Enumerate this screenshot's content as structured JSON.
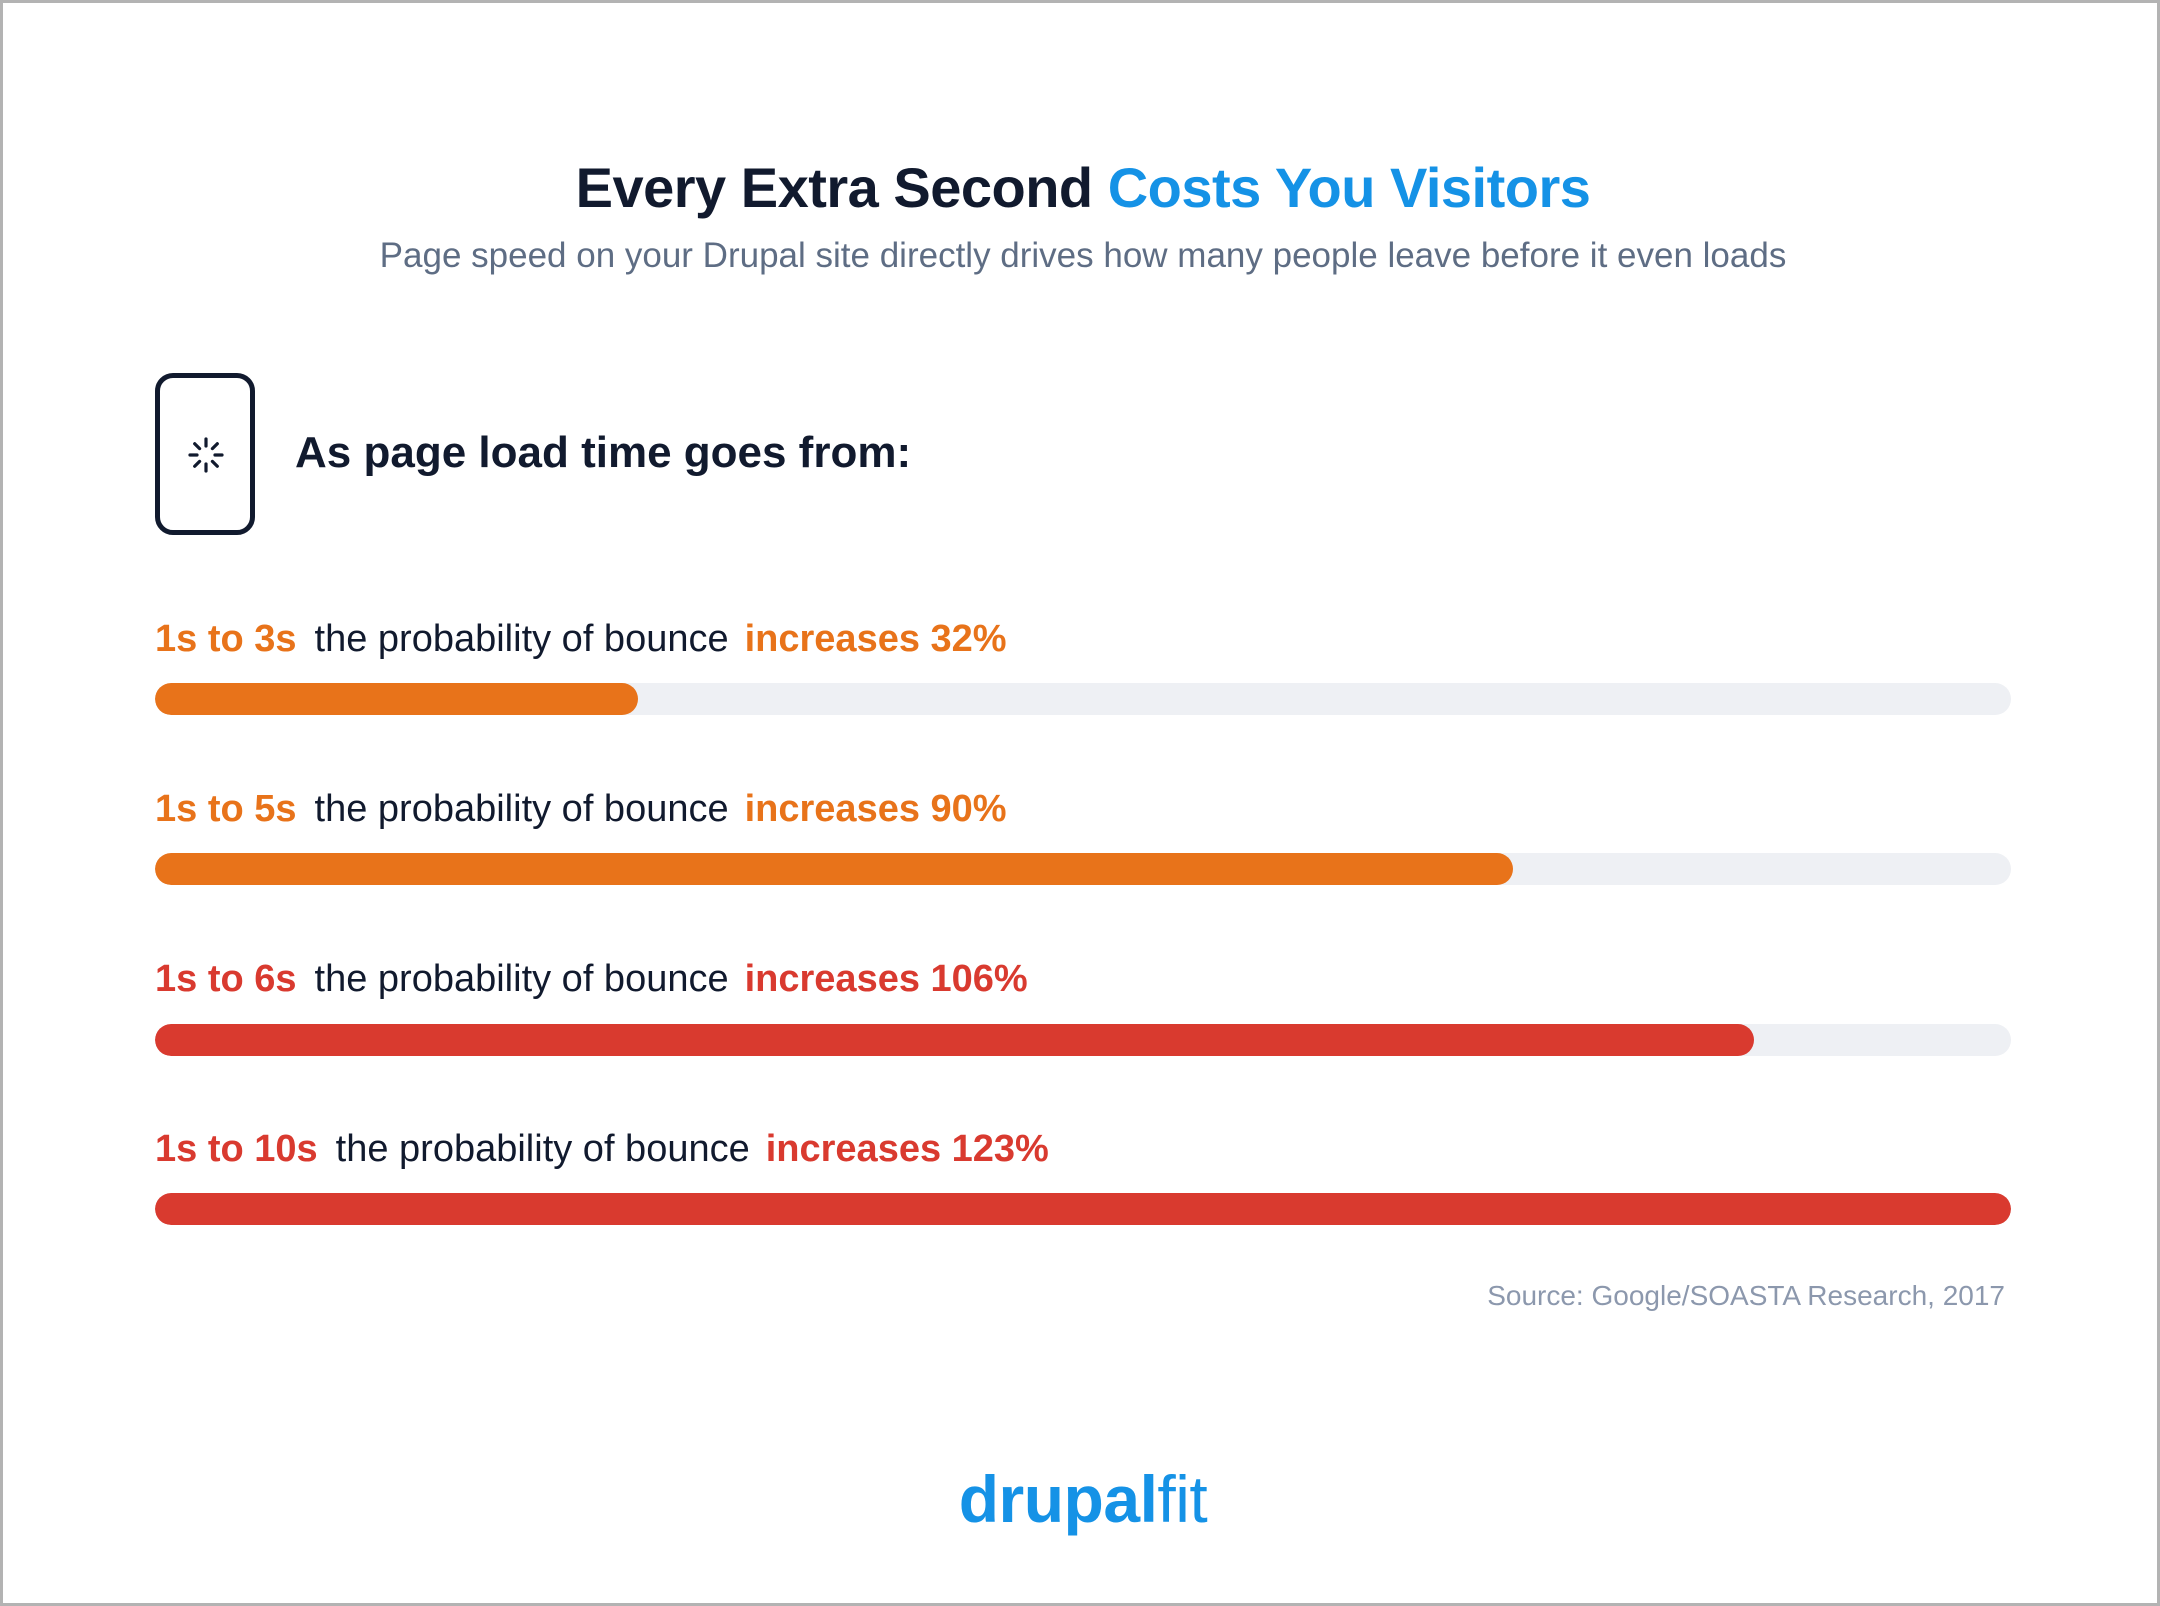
{
  "title": {
    "part1": "Every Extra Second",
    "part2": "Costs You Visitors"
  },
  "subtitle": "Page speed on your Drupal site directly drives how many people leave before it even loads",
  "lead": "As page load time goes from:",
  "icons": {
    "phone": "phone-loading-icon"
  },
  "colors": {
    "orange": "#e8731a",
    "red": "#d93a2f",
    "track": "#eef0f4",
    "accent": "#1592e6"
  },
  "chart_data": {
    "type": "bar",
    "orientation": "horizontal",
    "categories": [
      "1s to 3s",
      "1s to 5s",
      "1s to 6s",
      "1s to 10s"
    ],
    "values": [
      32,
      90,
      106,
      123
    ],
    "value_labels": [
      "increases 32%",
      "increases 90%",
      "increases 106%",
      "increases 123%"
    ],
    "row_text": "the probability of bounce",
    "bar_colors": [
      "#e8731a",
      "#e8731a",
      "#d93a2f",
      "#d93a2f"
    ],
    "xlim": [
      0,
      123
    ],
    "title": "Every Extra Second Costs You Visitors",
    "xlabel": "",
    "ylabel": ""
  },
  "source": "Source: Google/SOASTA Research, 2017",
  "logo": {
    "bold": "drupal",
    "light": "fit"
  }
}
